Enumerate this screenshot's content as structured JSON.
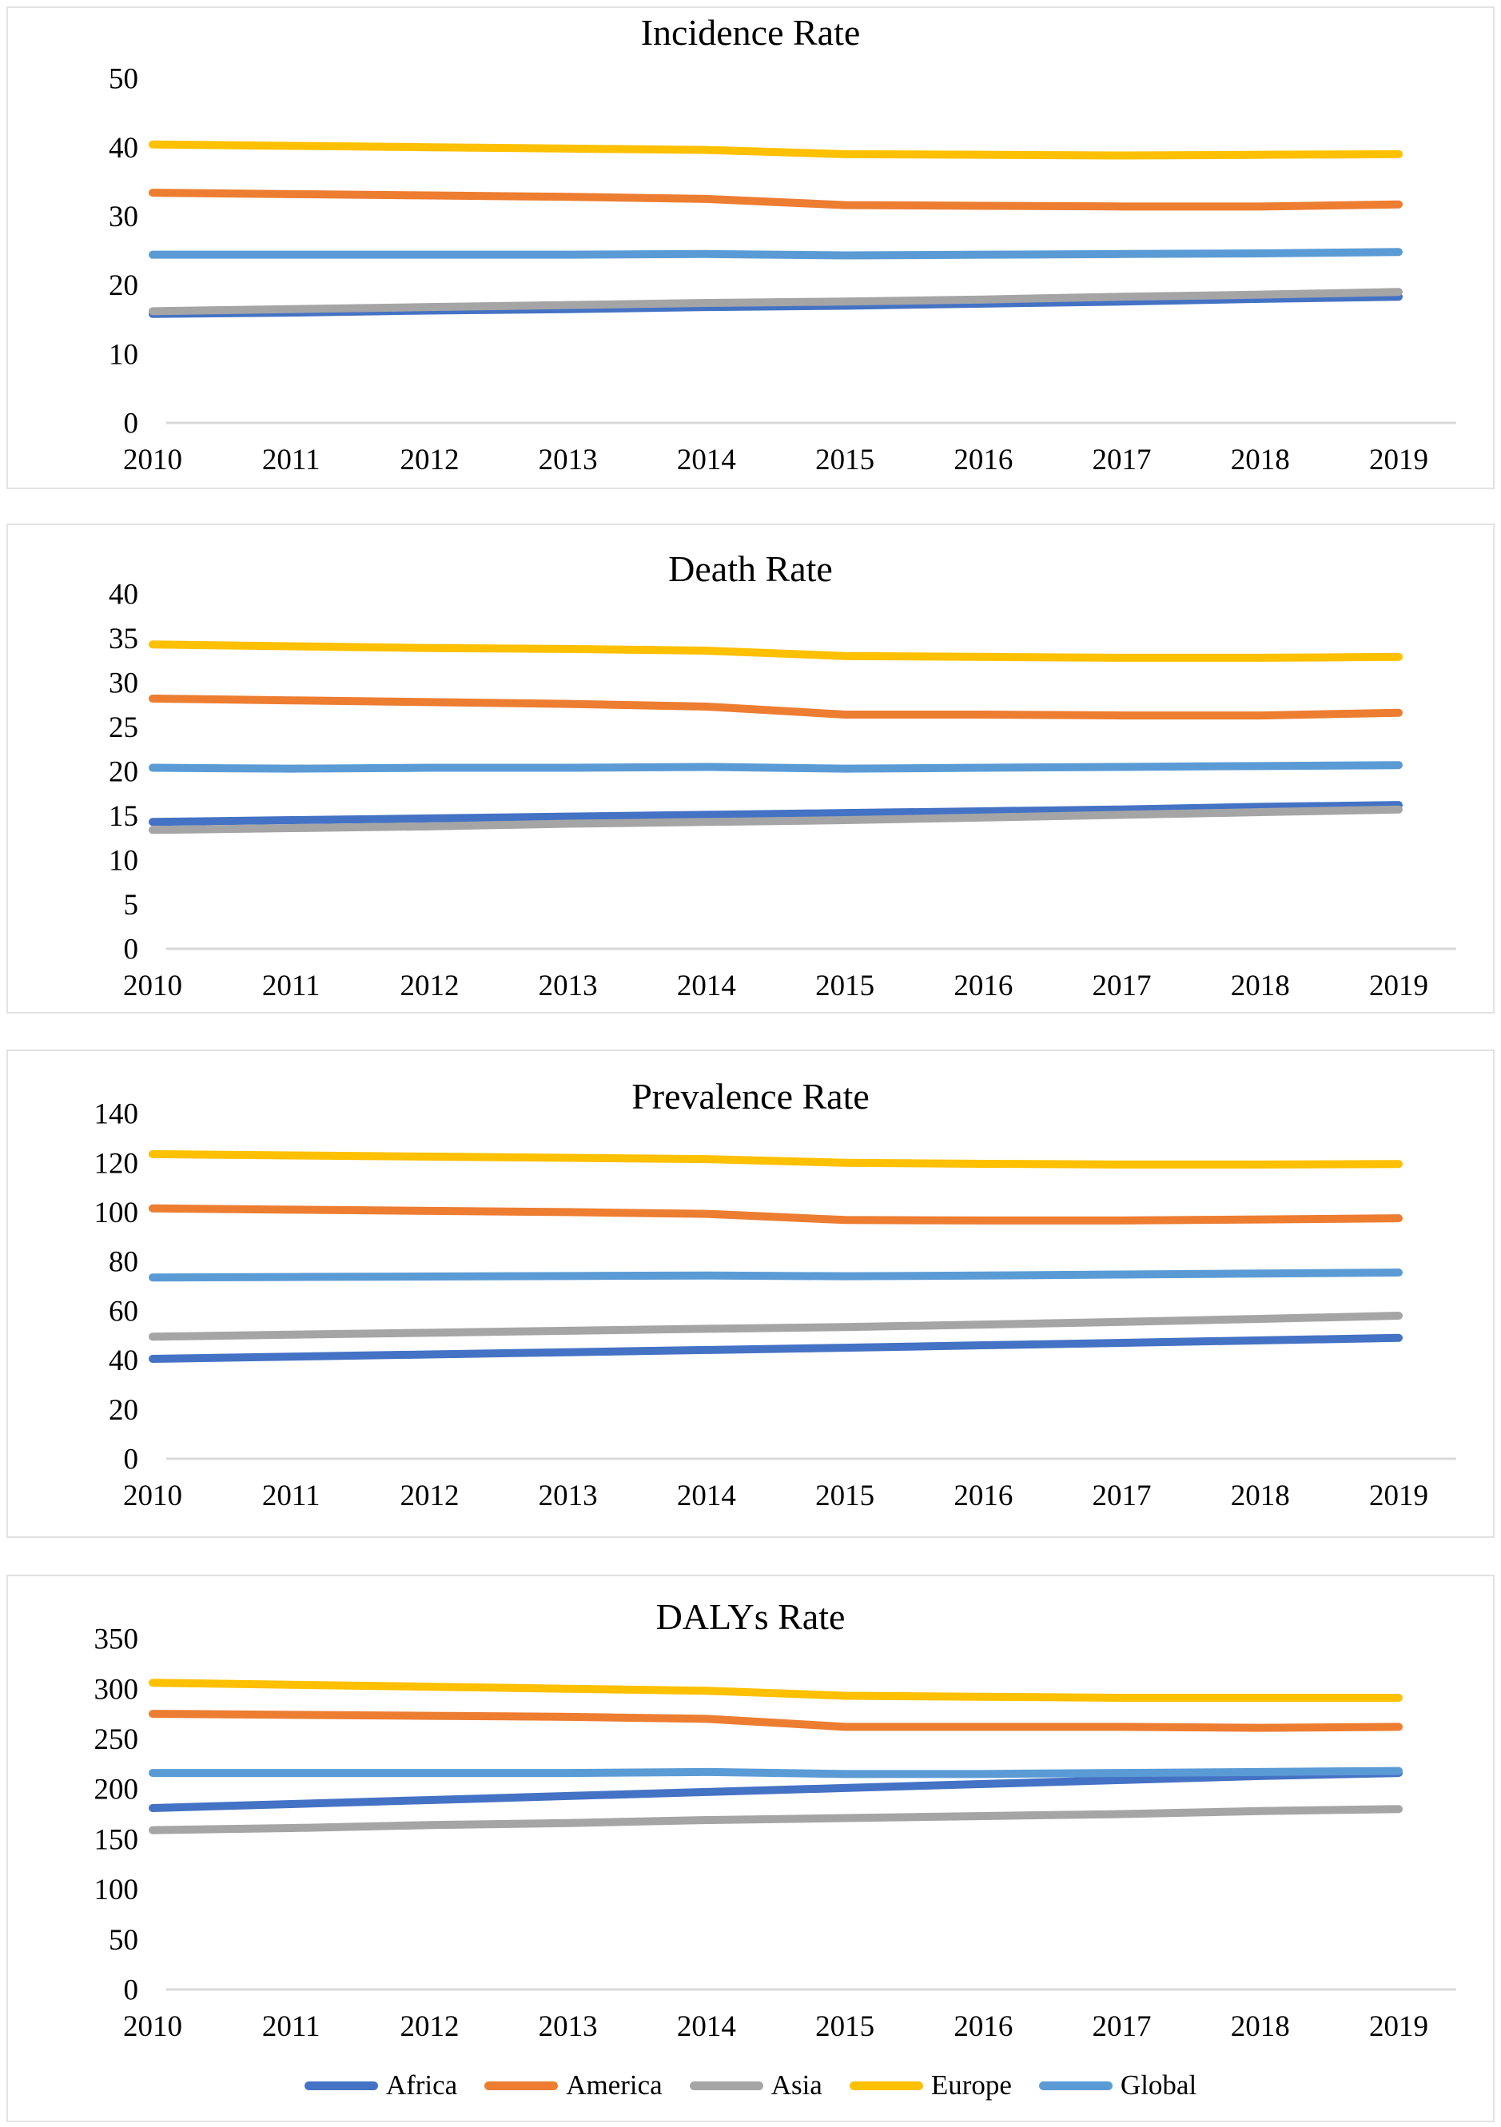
{
  "colors": {
    "africa": "#4472C4",
    "america": "#ED7D31",
    "asia": "#A5A5A5",
    "europe": "#FFC000",
    "global": "#5B9BD5",
    "axis_line": "#D9D9D9",
    "panel_border": "#E2E2E2",
    "text": "#000000"
  },
  "legend": {
    "position": "bottom-of-last-panel",
    "items": [
      {
        "label": "Africa"
      },
      {
        "label": "America"
      },
      {
        "label": "Asia"
      },
      {
        "label": "Europe"
      },
      {
        "label": "Global"
      }
    ]
  },
  "chart_data": [
    {
      "type": "line",
      "title": "Incidence Rate",
      "x": [
        2010,
        2011,
        2012,
        2013,
        2014,
        2015,
        2016,
        2017,
        2018,
        2019
      ],
      "ylim": [
        0,
        50
      ],
      "yticks": [
        0,
        10,
        20,
        30,
        40,
        50
      ],
      "grid": false,
      "series": [
        {
          "name": "Africa",
          "values": [
            15.8,
            16.0,
            16.3,
            16.5,
            16.8,
            17.0,
            17.3,
            17.6,
            18.0,
            18.3
          ]
        },
        {
          "name": "America",
          "values": [
            33.4,
            33.2,
            33.0,
            32.8,
            32.5,
            31.6,
            31.5,
            31.4,
            31.4,
            31.7
          ]
        },
        {
          "name": "Asia",
          "values": [
            16.2,
            16.5,
            16.8,
            17.1,
            17.4,
            17.6,
            17.9,
            18.3,
            18.6,
            19.0
          ]
        },
        {
          "name": "Europe",
          "values": [
            40.4,
            40.2,
            40.0,
            39.8,
            39.6,
            39.0,
            38.9,
            38.8,
            38.9,
            39.0
          ]
        },
        {
          "name": "Global",
          "values": [
            24.4,
            24.4,
            24.4,
            24.4,
            24.5,
            24.3,
            24.4,
            24.5,
            24.6,
            24.8
          ]
        }
      ]
    },
    {
      "type": "line",
      "title": "Death Rate",
      "x": [
        2010,
        2011,
        2012,
        2013,
        2014,
        2015,
        2016,
        2017,
        2018,
        2019
      ],
      "ylim": [
        0,
        40
      ],
      "yticks": [
        0,
        5,
        10,
        15,
        20,
        25,
        30,
        35,
        40
      ],
      "grid": false,
      "series": [
        {
          "name": "Africa",
          "values": [
            14.3,
            14.5,
            14.7,
            14.9,
            15.1,
            15.3,
            15.5,
            15.7,
            16.0,
            16.2
          ]
        },
        {
          "name": "America",
          "values": [
            28.2,
            28.0,
            27.8,
            27.6,
            27.3,
            26.4,
            26.4,
            26.3,
            26.3,
            26.6
          ]
        },
        {
          "name": "Asia",
          "values": [
            13.4,
            13.6,
            13.8,
            14.1,
            14.3,
            14.5,
            14.8,
            15.1,
            15.4,
            15.7
          ]
        },
        {
          "name": "Europe",
          "values": [
            34.3,
            34.1,
            33.9,
            33.8,
            33.6,
            33.0,
            32.9,
            32.8,
            32.8,
            32.9
          ]
        },
        {
          "name": "Global",
          "values": [
            20.4,
            20.3,
            20.4,
            20.4,
            20.5,
            20.3,
            20.4,
            20.5,
            20.6,
            20.7
          ]
        }
      ]
    },
    {
      "type": "line",
      "title": "Prevalence Rate",
      "x": [
        2010,
        2011,
        2012,
        2013,
        2014,
        2015,
        2016,
        2017,
        2018,
        2019
      ],
      "ylim": [
        0,
        140
      ],
      "yticks": [
        0,
        20,
        40,
        60,
        80,
        100,
        120,
        140
      ],
      "grid": false,
      "series": [
        {
          "name": "Africa",
          "values": [
            40.5,
            41.4,
            42.3,
            43.2,
            44.1,
            45.0,
            46.0,
            47.0,
            48.0,
            49.0
          ]
        },
        {
          "name": "America",
          "values": [
            101.5,
            101.0,
            100.5,
            100.0,
            99.3,
            96.8,
            96.6,
            96.6,
            97.0,
            97.5
          ]
        },
        {
          "name": "Asia",
          "values": [
            49.5,
            50.3,
            51.1,
            51.9,
            52.7,
            53.4,
            54.4,
            55.5,
            56.7,
            58.0
          ]
        },
        {
          "name": "Europe",
          "values": [
            123.5,
            123.0,
            122.5,
            122.0,
            121.5,
            120.0,
            119.6,
            119.3,
            119.3,
            119.5
          ]
        },
        {
          "name": "Global",
          "values": [
            73.5,
            73.7,
            73.9,
            74.1,
            74.3,
            74.0,
            74.3,
            74.7,
            75.1,
            75.5
          ]
        }
      ]
    },
    {
      "type": "line",
      "title": "DALYs Rate",
      "x": [
        2010,
        2011,
        2012,
        2013,
        2014,
        2015,
        2016,
        2017,
        2018,
        2019
      ],
      "ylim": [
        0,
        350
      ],
      "yticks": [
        0,
        50,
        100,
        150,
        200,
        250,
        300,
        350
      ],
      "grid": false,
      "series": [
        {
          "name": "Africa",
          "values": [
            181,
            185,
            189,
            193,
            197,
            201,
            205,
            209,
            213,
            216
          ]
        },
        {
          "name": "America",
          "values": [
            275,
            274,
            273,
            272,
            270,
            262,
            262,
            262,
            261,
            262
          ]
        },
        {
          "name": "Asia",
          "values": [
            159,
            161,
            164,
            166,
            169,
            171,
            173,
            175,
            178,
            180
          ]
        },
        {
          "name": "Europe",
          "values": [
            306,
            304,
            302,
            300,
            298,
            293,
            292,
            291,
            291,
            291
          ]
        },
        {
          "name": "Global",
          "values": [
            216,
            216,
            216,
            216,
            217,
            215,
            215,
            216,
            217,
            218
          ]
        }
      ]
    }
  ]
}
